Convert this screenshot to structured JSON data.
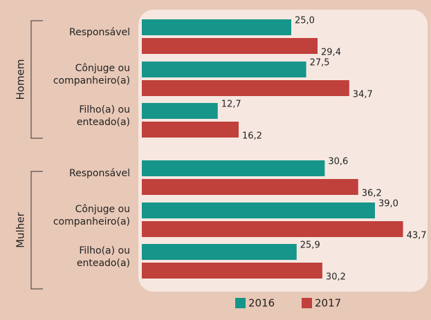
{
  "chart_data": {
    "type": "bar",
    "orientation": "horizontal",
    "group_labels": [
      "Homem",
      "Mulher"
    ],
    "categories": [
      [
        "Responsável"
      ],
      [
        "Cônjuge ou",
        "companheiro(a)"
      ],
      [
        "Filho(a) ou",
        "enteado(a)"
      ],
      [
        "Responsável"
      ],
      [
        "Cônjuge ou",
        "companheiro(a)"
      ],
      [
        "Filho(a) ou",
        "enteado(a)"
      ]
    ],
    "series": [
      {
        "name": "2016",
        "color": "#16958a",
        "values": [
          25.0,
          27.5,
          12.7,
          30.6,
          39.0,
          25.9
        ],
        "value_labels": [
          "25,0",
          "27,5",
          "12,7",
          "30,6",
          "39,0",
          "25,9"
        ]
      },
      {
        "name": "2017",
        "color": "#c0403b",
        "values": [
          29.4,
          34.7,
          16.2,
          36.2,
          43.7,
          30.2
        ],
        "value_labels": [
          "29,4",
          "34,7",
          "16,2",
          "36,2",
          "43,7",
          "30,2"
        ]
      }
    ]
  }
}
